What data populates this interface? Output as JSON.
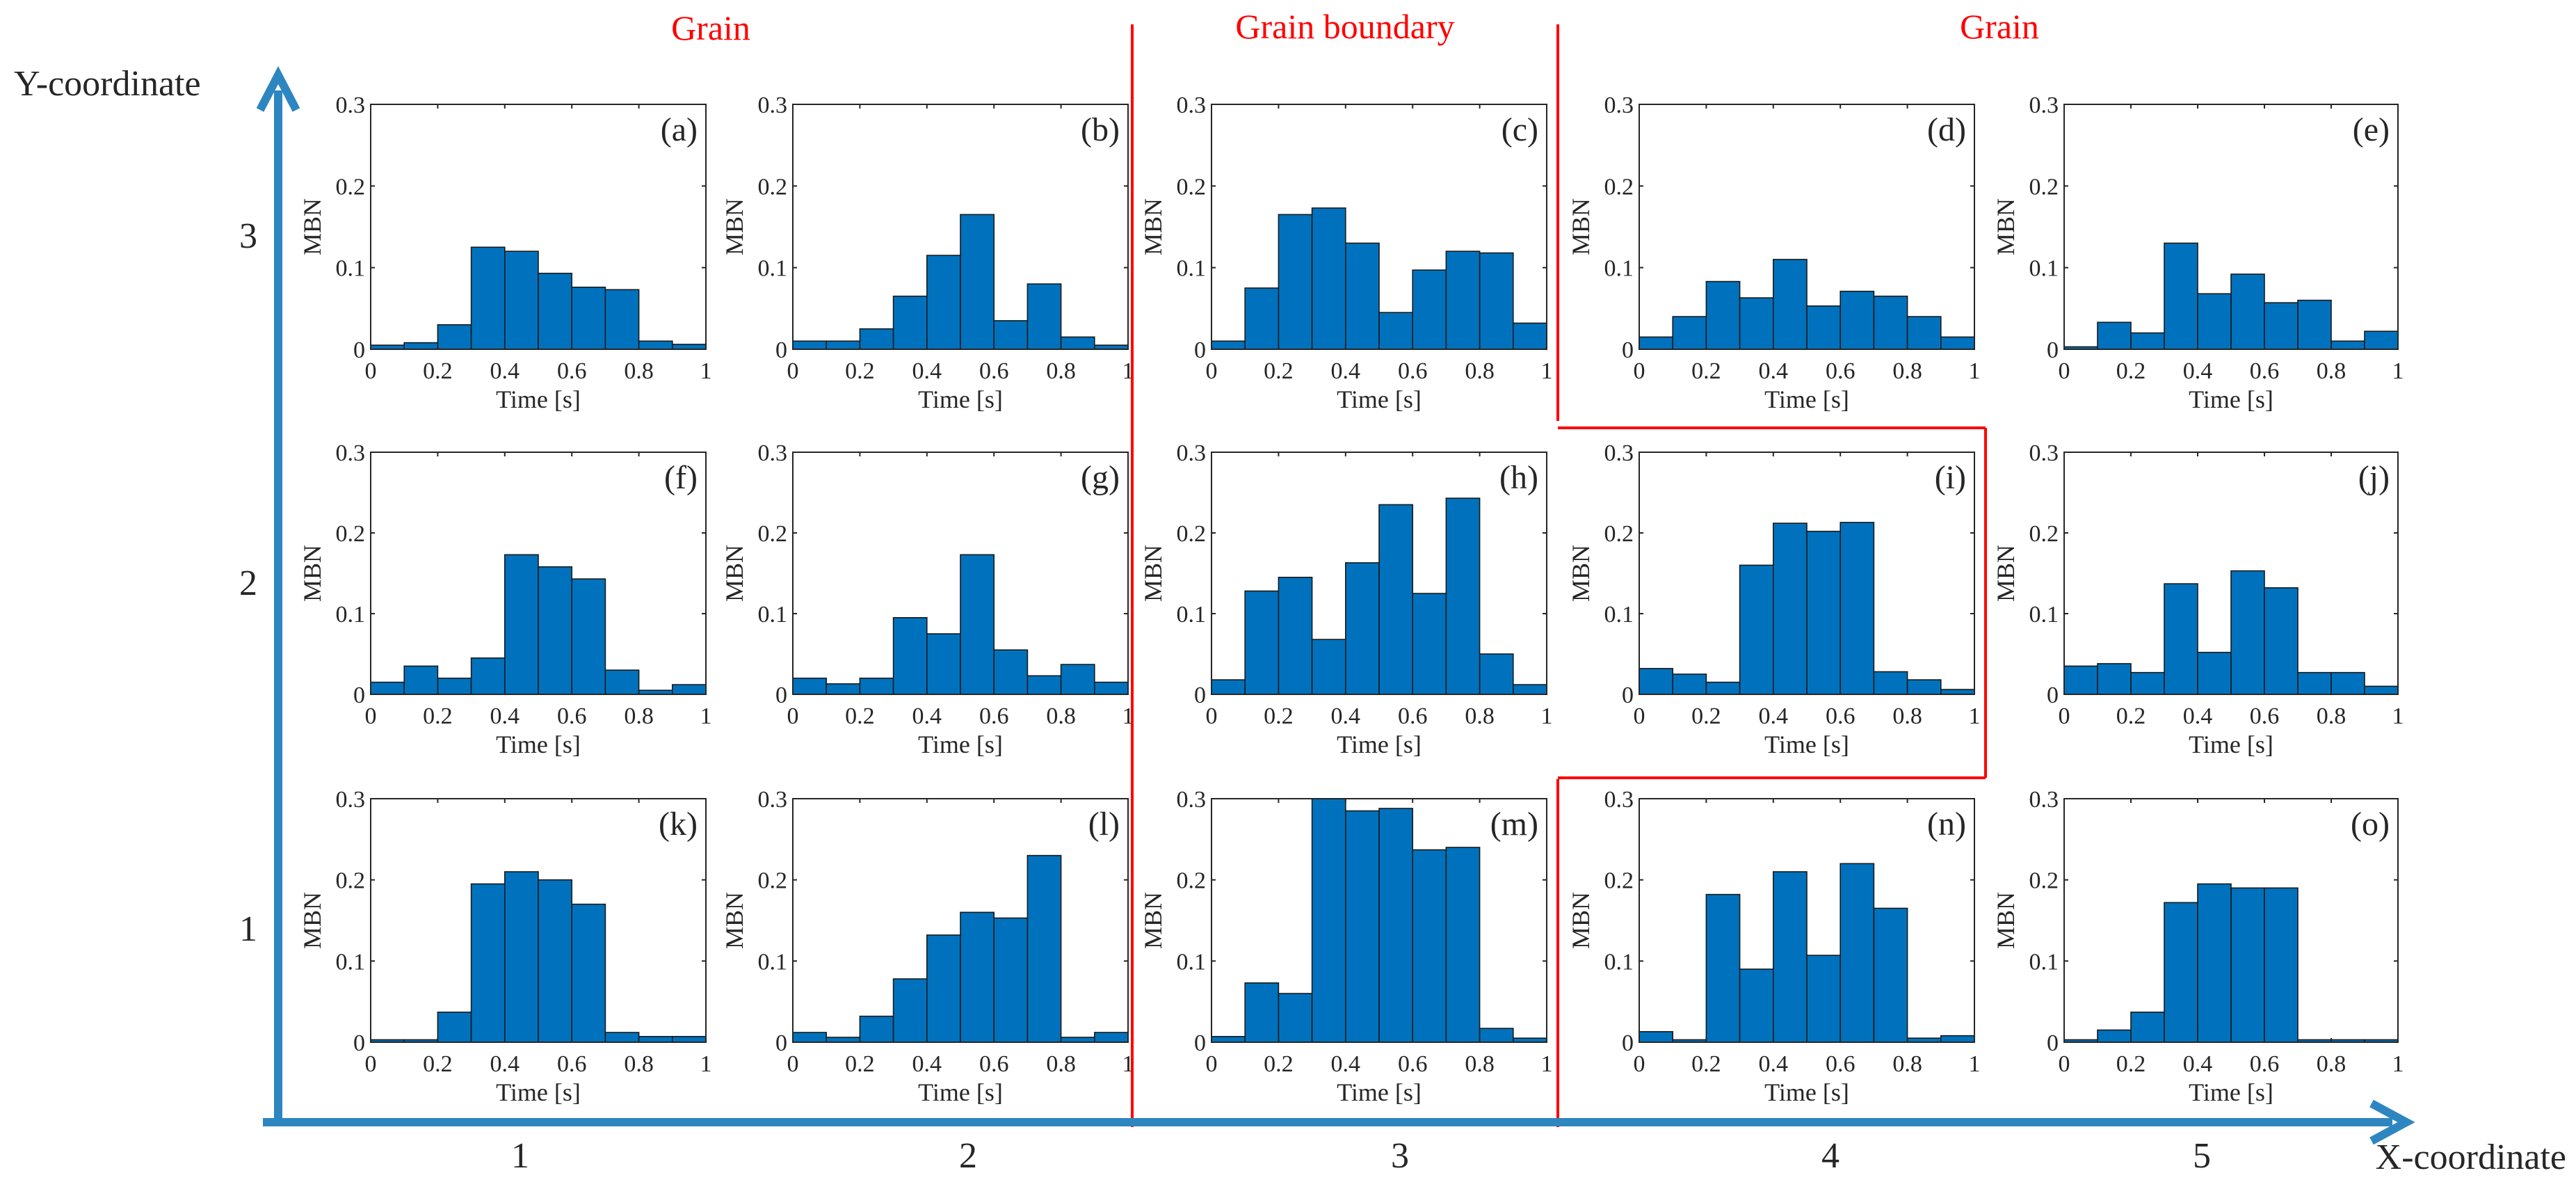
{
  "figure": {
    "x_axis_label": "X-coordinate",
    "y_axis_label": "Y-coordinate",
    "x_ticks": [
      "1",
      "2",
      "3",
      "4",
      "5"
    ],
    "y_ticks": [
      "1",
      "2",
      "3"
    ],
    "region_labels": [
      "Grain",
      "Grain boundary",
      "Grain"
    ]
  },
  "colors": {
    "bar": "#0072BD",
    "axis_arrow": "#2E86C1",
    "region": "#FF0000",
    "text": "#262626"
  },
  "chart_data": [
    {
      "type": "bar",
      "panel_label": "(a)",
      "xlabel": "Time [s]",
      "ylabel": "MBN",
      "xlim": [
        0,
        1
      ],
      "ylim": [
        0,
        0.3
      ],
      "xticks": [
        "0",
        "0.2",
        "0.4",
        "0.6",
        "0.8",
        "1"
      ],
      "yticks": [
        "0",
        "0.1",
        "0.2",
        "0.3"
      ],
      "values": [
        0.005,
        0.008,
        0.03,
        0.125,
        0.12,
        0.093,
        0.076,
        0.073,
        0.01,
        0.006
      ]
    },
    {
      "type": "bar",
      "panel_label": "(b)",
      "xlabel": "Time [s]",
      "ylabel": "MBN",
      "xlim": [
        0,
        1
      ],
      "ylim": [
        0,
        0.3
      ],
      "xticks": [
        "0",
        "0.2",
        "0.4",
        "0.6",
        "0.8",
        "1"
      ],
      "yticks": [
        "0",
        "0.1",
        "0.2",
        "0.3"
      ],
      "values": [
        0.01,
        0.01,
        0.025,
        0.065,
        0.115,
        0.165,
        0.035,
        0.08,
        0.015,
        0.005
      ]
    },
    {
      "type": "bar",
      "panel_label": "(c)",
      "xlabel": "Time [s]",
      "ylabel": "MBN",
      "xlim": [
        0,
        1
      ],
      "ylim": [
        0,
        0.3
      ],
      "xticks": [
        "0",
        "0.2",
        "0.4",
        "0.6",
        "0.8",
        "1"
      ],
      "yticks": [
        "0",
        "0.1",
        "0.2",
        "0.3"
      ],
      "values": [
        0.01,
        0.075,
        0.165,
        0.173,
        0.13,
        0.045,
        0.097,
        0.12,
        0.118,
        0.032
      ]
    },
    {
      "type": "bar",
      "panel_label": "(d)",
      "xlabel": "Time [s]",
      "ylabel": "MBN",
      "xlim": [
        0,
        1
      ],
      "ylim": [
        0,
        0.3
      ],
      "xticks": [
        "0",
        "0.2",
        "0.4",
        "0.6",
        "0.8",
        "1"
      ],
      "yticks": [
        "0",
        "0.1",
        "0.2",
        "0.3"
      ],
      "values": [
        0.015,
        0.04,
        0.083,
        0.063,
        0.11,
        0.053,
        0.071,
        0.065,
        0.04,
        0.015
      ]
    },
    {
      "type": "bar",
      "panel_label": "(e)",
      "xlabel": "Time [s]",
      "ylabel": "MBN",
      "xlim": [
        0,
        1
      ],
      "ylim": [
        0,
        0.3
      ],
      "xticks": [
        "0",
        "0.2",
        "0.4",
        "0.6",
        "0.8",
        "1"
      ],
      "yticks": [
        "0",
        "0.1",
        "0.2",
        "0.3"
      ],
      "values": [
        0.003,
        0.033,
        0.02,
        0.13,
        0.068,
        0.092,
        0.057,
        0.06,
        0.01,
        0.022
      ]
    },
    {
      "type": "bar",
      "panel_label": "(f)",
      "xlabel": "Time [s]",
      "ylabel": "MBN",
      "xlim": [
        0,
        1
      ],
      "ylim": [
        0,
        0.3
      ],
      "xticks": [
        "0",
        "0.2",
        "0.4",
        "0.6",
        "0.8",
        "1"
      ],
      "yticks": [
        "0",
        "0.1",
        "0.2",
        "0.3"
      ],
      "values": [
        0.015,
        0.035,
        0.02,
        0.045,
        0.173,
        0.158,
        0.143,
        0.03,
        0.005,
        0.012
      ]
    },
    {
      "type": "bar",
      "panel_label": "(g)",
      "xlabel": "Time [s]",
      "ylabel": "MBN",
      "xlim": [
        0,
        1
      ],
      "ylim": [
        0,
        0.3
      ],
      "xticks": [
        "0",
        "0.2",
        "0.4",
        "0.6",
        "0.8",
        "1"
      ],
      "yticks": [
        "0",
        "0.1",
        "0.2",
        "0.3"
      ],
      "values": [
        0.02,
        0.013,
        0.02,
        0.095,
        0.075,
        0.173,
        0.055,
        0.023,
        0.037,
        0.015
      ]
    },
    {
      "type": "bar",
      "panel_label": "(h)",
      "xlabel": "Time [s]",
      "ylabel": "MBN",
      "xlim": [
        0,
        1
      ],
      "ylim": [
        0,
        0.3
      ],
      "xticks": [
        "0",
        "0.2",
        "0.4",
        "0.6",
        "0.8",
        "1"
      ],
      "yticks": [
        "0",
        "0.1",
        "0.2",
        "0.3"
      ],
      "values": [
        0.018,
        0.128,
        0.145,
        0.068,
        0.163,
        0.235,
        0.125,
        0.243,
        0.05,
        0.012
      ]
    },
    {
      "type": "bar",
      "panel_label": "(i)",
      "xlabel": "Time [s]",
      "ylabel": "MBN",
      "xlim": [
        0,
        1
      ],
      "ylim": [
        0,
        0.3
      ],
      "xticks": [
        "0",
        "0.2",
        "0.4",
        "0.6",
        "0.8",
        "1"
      ],
      "yticks": [
        "0",
        "0.1",
        "0.2",
        "0.3"
      ],
      "values": [
        0.032,
        0.025,
        0.015,
        0.16,
        0.212,
        0.202,
        0.213,
        0.028,
        0.018,
        0.006
      ]
    },
    {
      "type": "bar",
      "panel_label": "(j)",
      "xlabel": "Time [s]",
      "ylabel": "MBN",
      "xlim": [
        0,
        1
      ],
      "ylim": [
        0,
        0.3
      ],
      "xticks": [
        "0",
        "0.2",
        "0.4",
        "0.6",
        "0.8",
        "1"
      ],
      "yticks": [
        "0",
        "0.1",
        "0.2",
        "0.3"
      ],
      "values": [
        0.035,
        0.038,
        0.027,
        0.137,
        0.052,
        0.153,
        0.132,
        0.027,
        0.027,
        0.01
      ]
    },
    {
      "type": "bar",
      "panel_label": "(k)",
      "xlabel": "Time [s]",
      "ylabel": "MBN",
      "xlim": [
        0,
        1
      ],
      "ylim": [
        0,
        0.3
      ],
      "xticks": [
        "0",
        "0.2",
        "0.4",
        "0.6",
        "0.8",
        "1"
      ],
      "yticks": [
        "0",
        "0.1",
        "0.2",
        "0.3"
      ],
      "values": [
        0.003,
        0.003,
        0.037,
        0.195,
        0.21,
        0.2,
        0.17,
        0.012,
        0.007,
        0.007
      ]
    },
    {
      "type": "bar",
      "panel_label": "(l)",
      "xlabel": "Time [s]",
      "ylabel": "MBN",
      "xlim": [
        0,
        1
      ],
      "ylim": [
        0,
        0.3
      ],
      "xticks": [
        "0",
        "0.2",
        "0.4",
        "0.6",
        "0.8",
        "1"
      ],
      "yticks": [
        "0",
        "0.1",
        "0.2",
        "0.3"
      ],
      "values": [
        0.012,
        0.006,
        0.032,
        0.078,
        0.132,
        0.16,
        0.153,
        0.23,
        0.006,
        0.012
      ]
    },
    {
      "type": "bar",
      "panel_label": "(m)",
      "xlabel": "Time [s]",
      "ylabel": "MBN",
      "xlim": [
        0,
        1
      ],
      "ylim": [
        0,
        0.3
      ],
      "xticks": [
        "0",
        "0.2",
        "0.4",
        "0.6",
        "0.8",
        "1"
      ],
      "yticks": [
        "0",
        "0.1",
        "0.2",
        "0.3"
      ],
      "values": [
        0.007,
        0.073,
        0.06,
        0.3,
        0.285,
        0.288,
        0.237,
        0.24,
        0.017,
        0.005
      ]
    },
    {
      "type": "bar",
      "panel_label": "(n)",
      "xlabel": "Time [s]",
      "ylabel": "MBN",
      "xlim": [
        0,
        1
      ],
      "ylim": [
        0,
        0.3
      ],
      "xticks": [
        "0",
        "0.2",
        "0.4",
        "0.6",
        "0.8",
        "1"
      ],
      "yticks": [
        "0",
        "0.1",
        "0.2",
        "0.3"
      ],
      "values": [
        0.013,
        0.003,
        0.182,
        0.09,
        0.21,
        0.107,
        0.22,
        0.165,
        0.005,
        0.008
      ]
    },
    {
      "type": "bar",
      "panel_label": "(o)",
      "xlabel": "Time [s]",
      "ylabel": "MBN",
      "xlim": [
        0,
        1
      ],
      "ylim": [
        0,
        0.3
      ],
      "xticks": [
        "0",
        "0.2",
        "0.4",
        "0.6",
        "0.8",
        "1"
      ],
      "yticks": [
        "0",
        "0.1",
        "0.2",
        "0.3"
      ],
      "values": [
        0.003,
        0.015,
        0.037,
        0.172,
        0.195,
        0.19,
        0.19,
        0.003,
        0.003,
        0.003
      ]
    }
  ]
}
